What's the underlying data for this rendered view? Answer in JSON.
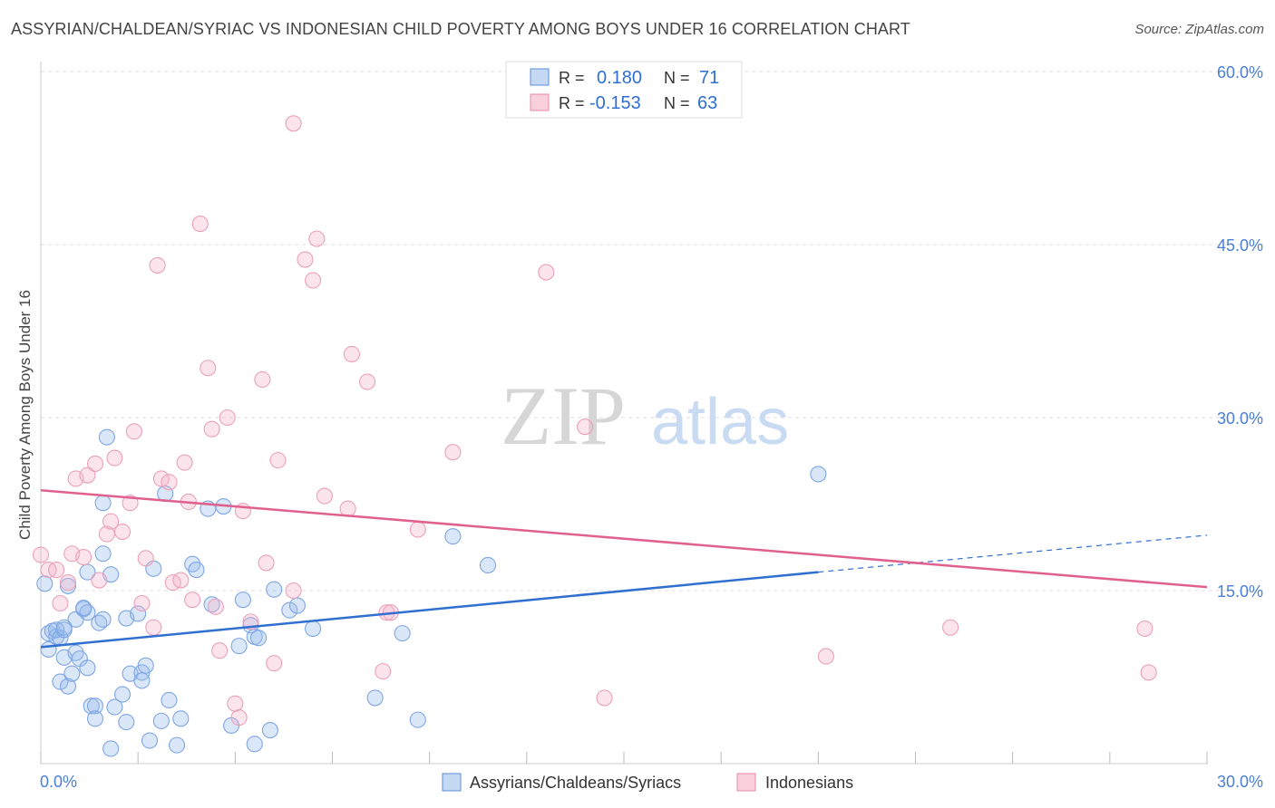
{
  "header": {
    "title": "ASSYRIAN/CHALDEAN/SYRIAC VS INDONESIAN CHILD POVERTY AMONG BOYS UNDER 16 CORRELATION CHART",
    "source": "Source: ZipAtlas.com"
  },
  "watermark": {
    "zip": "ZIP",
    "atlas": "atlas"
  },
  "legend_top": {
    "rows": [
      {
        "r_label": "R =",
        "r_value": "0.180",
        "n_label": "N =",
        "n_value": "71",
        "color": "#5b8fd9"
      },
      {
        "r_label": "R =",
        "r_value": "-0.153",
        "n_label": "N =",
        "n_value": "63",
        "color": "#e68aa9"
      }
    ]
  },
  "legend_bottom": {
    "items": [
      {
        "label": "Assyrians/Chaldeans/Syriacs",
        "color": "#5b8fd9"
      },
      {
        "label": "Indonesians",
        "color": "#e68aa9"
      }
    ]
  },
  "chart_data": {
    "type": "scatter",
    "title": "ASSYRIAN/CHALDEAN/SYRIAC VS INDONESIAN CHILD POVERTY AMONG BOYS UNDER 16 CORRELATION CHART",
    "xlabel": "",
    "ylabel": "Child Poverty Among Boys Under 16",
    "xlim": [
      0,
      30
    ],
    "ylim": [
      0,
      60
    ],
    "x_tick_labels": [
      "0.0%",
      "30.0%"
    ],
    "y_tick_labels": [
      "15.0%",
      "30.0%",
      "45.0%",
      "60.0%"
    ],
    "y_ticks": [
      15,
      30,
      45,
      60
    ],
    "grid": "horizontal dashed",
    "legend_position": "top-center",
    "colors": {
      "blue": "#5b8fd9",
      "pink": "#e68aa9",
      "blue_line": "#2f6fcf",
      "pink_line": "#e0608e",
      "tick_text": "#4a7fd4"
    },
    "series": [
      {
        "name": "Assyrians/Chaldeans/Syriacs",
        "color": "#5b8fd9",
        "trend": {
          "x": [
            0,
            20
          ],
          "y": [
            10.1,
            16.6
          ],
          "dashed_extension_to_x": 30,
          "dashed_end_y": 19.8
        },
        "points": [
          [
            0.1,
            15.6
          ],
          [
            0.2,
            11.3
          ],
          [
            0.2,
            9.9
          ],
          [
            0.3,
            11.5
          ],
          [
            0.4,
            11.0
          ],
          [
            0.4,
            11.6
          ],
          [
            0.5,
            7.1
          ],
          [
            0.5,
            10.9
          ],
          [
            0.6,
            11.6
          ],
          [
            0.6,
            9.2
          ],
          [
            0.7,
            15.4
          ],
          [
            0.7,
            6.7
          ],
          [
            0.8,
            7.8
          ],
          [
            0.9,
            12.5
          ],
          [
            0.9,
            9.6
          ],
          [
            1.0,
            9.1
          ],
          [
            1.1,
            13.4
          ],
          [
            1.2,
            8.3
          ],
          [
            1.2,
            16.6
          ],
          [
            1.2,
            13.1
          ],
          [
            1.3,
            5.0
          ],
          [
            1.4,
            5.0
          ],
          [
            1.4,
            3.9
          ],
          [
            1.5,
            12.2
          ],
          [
            1.6,
            12.5
          ],
          [
            1.6,
            18.2
          ],
          [
            1.6,
            22.6
          ],
          [
            1.7,
            28.3
          ],
          [
            1.8,
            16.4
          ],
          [
            1.9,
            4.9
          ],
          [
            2.1,
            6.0
          ],
          [
            2.2,
            3.6
          ],
          [
            2.2,
            12.6
          ],
          [
            2.3,
            7.8
          ],
          [
            2.5,
            13.0
          ],
          [
            2.6,
            7.9
          ],
          [
            2.6,
            7.2
          ],
          [
            2.7,
            8.5
          ],
          [
            2.8,
            2.0
          ],
          [
            2.9,
            16.9
          ],
          [
            3.1,
            3.7
          ],
          [
            3.2,
            23.4
          ],
          [
            3.3,
            5.5
          ],
          [
            3.5,
            1.6
          ],
          [
            3.6,
            3.9
          ],
          [
            3.9,
            17.3
          ],
          [
            4.0,
            16.8
          ],
          [
            4.3,
            22.1
          ],
          [
            4.4,
            13.8
          ],
          [
            4.7,
            22.3
          ],
          [
            4.9,
            3.3
          ],
          [
            5.1,
            10.2
          ],
          [
            5.2,
            14.2
          ],
          [
            5.4,
            12.0
          ],
          [
            5.5,
            11.0
          ],
          [
            5.5,
            1.7
          ],
          [
            5.6,
            10.9
          ],
          [
            5.9,
            2.9
          ],
          [
            6.0,
            15.1
          ],
          [
            6.4,
            13.3
          ],
          [
            6.6,
            13.7
          ],
          [
            7.0,
            11.7
          ],
          [
            8.6,
            5.7
          ],
          [
            9.3,
            11.3
          ],
          [
            9.7,
            3.8
          ],
          [
            10.6,
            19.7
          ],
          [
            11.5,
            17.2
          ],
          [
            20.0,
            25.1
          ],
          [
            1.8,
            1.3
          ],
          [
            0.6,
            11.8
          ],
          [
            1.1,
            13.5
          ]
        ]
      },
      {
        "name": "Indonesians",
        "color": "#e68aa9",
        "trend": {
          "x": [
            0,
            30
          ],
          "y": [
            23.7,
            15.3
          ]
        },
        "points": [
          [
            0.0,
            18.1
          ],
          [
            0.2,
            16.8
          ],
          [
            0.4,
            16.8
          ],
          [
            0.5,
            13.9
          ],
          [
            0.7,
            15.7
          ],
          [
            0.8,
            18.2
          ],
          [
            0.9,
            24.7
          ],
          [
            1.1,
            17.9
          ],
          [
            1.2,
            25.0
          ],
          [
            1.4,
            26.0
          ],
          [
            1.5,
            15.9
          ],
          [
            1.7,
            19.9
          ],
          [
            1.8,
            21.0
          ],
          [
            1.9,
            26.5
          ],
          [
            2.1,
            20.1
          ],
          [
            2.3,
            22.6
          ],
          [
            2.4,
            28.8
          ],
          [
            2.6,
            13.9
          ],
          [
            2.7,
            17.8
          ],
          [
            2.9,
            11.8
          ],
          [
            3.0,
            43.2
          ],
          [
            3.1,
            24.7
          ],
          [
            3.3,
            24.4
          ],
          [
            3.4,
            15.7
          ],
          [
            3.6,
            15.9
          ],
          [
            3.7,
            26.1
          ],
          [
            3.8,
            22.7
          ],
          [
            3.9,
            14.2
          ],
          [
            4.1,
            46.8
          ],
          [
            4.3,
            34.3
          ],
          [
            4.4,
            29.0
          ],
          [
            4.5,
            13.6
          ],
          [
            4.6,
            9.8
          ],
          [
            4.8,
            30.0
          ],
          [
            5.0,
            5.2
          ],
          [
            5.1,
            4.0
          ],
          [
            5.2,
            21.9
          ],
          [
            5.4,
            12.3
          ],
          [
            5.7,
            33.3
          ],
          [
            5.8,
            17.4
          ],
          [
            6.0,
            8.7
          ],
          [
            6.1,
            26.3
          ],
          [
            6.5,
            15.0
          ],
          [
            6.5,
            55.5
          ],
          [
            6.8,
            43.7
          ],
          [
            7.0,
            41.9
          ],
          [
            7.1,
            45.5
          ],
          [
            7.3,
            23.2
          ],
          [
            7.9,
            22.1
          ],
          [
            8.0,
            35.5
          ],
          [
            8.4,
            33.1
          ],
          [
            8.8,
            8.0
          ],
          [
            8.9,
            13.1
          ],
          [
            9.0,
            13.1
          ],
          [
            9.7,
            20.3
          ],
          [
            10.6,
            27.0
          ],
          [
            13.0,
            42.6
          ],
          [
            14.0,
            29.2
          ],
          [
            14.5,
            5.7
          ],
          [
            20.2,
            9.3
          ],
          [
            23.4,
            11.8
          ],
          [
            28.4,
            11.7
          ],
          [
            28.5,
            7.9
          ]
        ]
      }
    ]
  }
}
